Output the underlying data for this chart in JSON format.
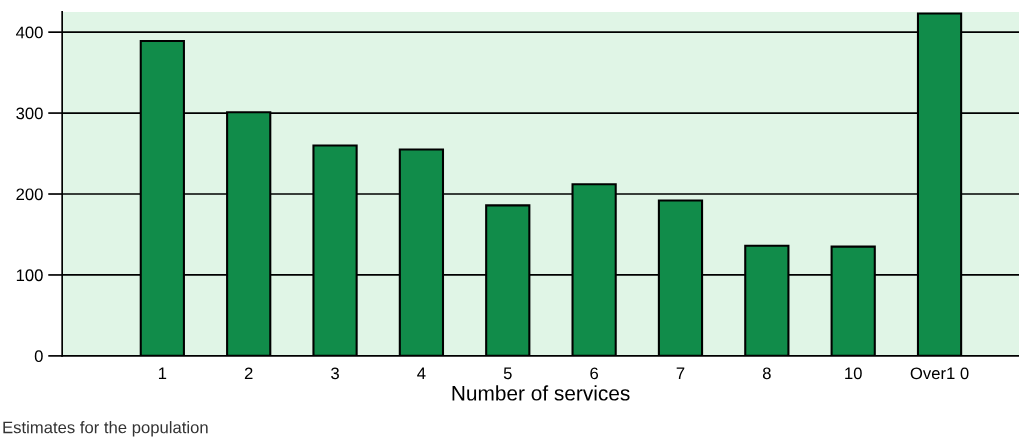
{
  "chart_data": {
    "type": "bar",
    "xlabel": "Number of services",
    "categories": [
      "1",
      "2",
      "3",
      "4",
      "5",
      "6",
      "7",
      "8",
      "10",
      "Over1 0"
    ],
    "values": [
      389,
      301,
      260,
      255,
      186,
      212,
      192,
      136,
      135,
      423
    ],
    "color": "#118c4a",
    "ylim": [
      0,
      425
    ],
    "yticks": [
      0,
      100,
      200,
      300,
      400
    ],
    "grid": "y",
    "annotations": [
      "Estimates for the population"
    ]
  }
}
